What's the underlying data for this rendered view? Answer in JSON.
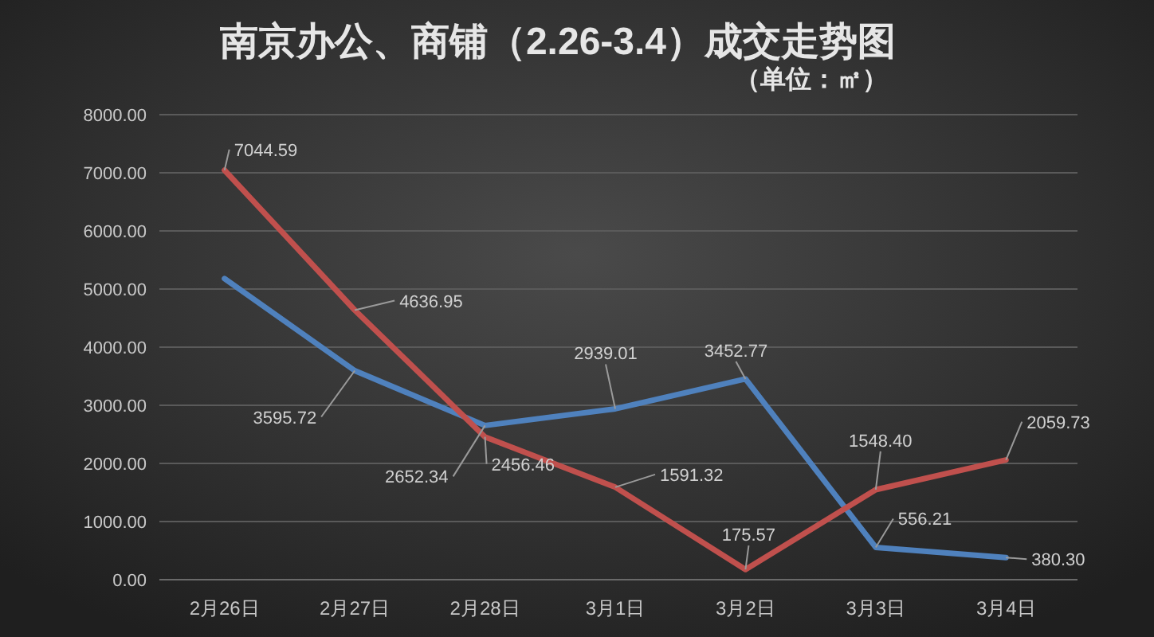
{
  "chart_data": {
    "type": "line",
    "title": "南京办公、商铺（2.26-3.4）成交走势图",
    "subtitle": "（单位：㎡）",
    "categories": [
      "2月26日",
      "2月27日",
      "2月28日",
      "3月1日",
      "3月2日",
      "3月3日",
      "3月4日"
    ],
    "series": [
      {
        "color": "#4f81bd",
        "values": [
          5180,
          3595.72,
          2652.34,
          2939.01,
          3452.77,
          556.21,
          380.3
        ],
        "value_labels": [
          null,
          "3595.72",
          "2652.34",
          "2939.01",
          "3452.77",
          "556.21",
          "380.30"
        ]
      },
      {
        "color": "#c0504d",
        "values": [
          7044.59,
          4636.95,
          2456.46,
          1591.32,
          175.57,
          1548.4,
          2059.73
        ],
        "value_labels": [
          "7044.59",
          "4636.95",
          "2456.46",
          "1591.32",
          "175.57",
          "1548.40",
          "2059.73"
        ]
      }
    ],
    "ylim": [
      0,
      8000
    ],
    "yticks": [
      {
        "value": 0,
        "label": "0.00"
      },
      {
        "value": 1000,
        "label": "1000.00"
      },
      {
        "value": 2000,
        "label": "2000.00"
      },
      {
        "value": 3000,
        "label": "3000.00"
      },
      {
        "value": 4000,
        "label": "4000.00"
      },
      {
        "value": 5000,
        "label": "5000.00"
      },
      {
        "value": 6000,
        "label": "6000.00"
      },
      {
        "value": 7000,
        "label": "7000.00"
      },
      {
        "value": 8000,
        "label": "8000.00"
      }
    ],
    "grid": "y",
    "marker": "none",
    "line_style": "solid"
  }
}
